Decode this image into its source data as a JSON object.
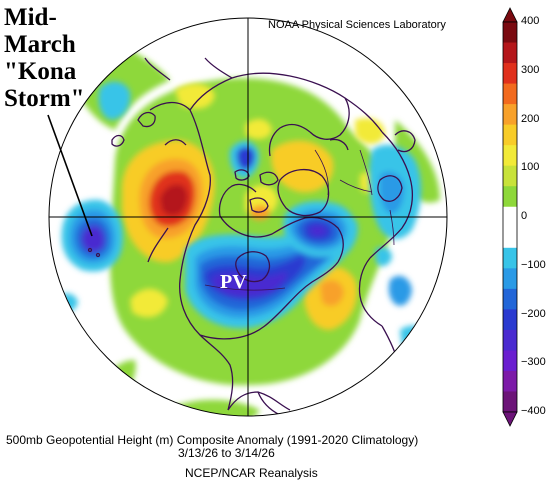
{
  "credit": "NOAA Physical Sciences Laboratory",
  "annotation": {
    "lines": [
      "Mid-",
      "March",
      "\"Kona",
      "Storm\""
    ]
  },
  "feature_label": "PV",
  "caption": {
    "line1": "500mb Geopotential Height (m) Composite Anomaly (1991-2020 Climatology)",
    "line2": "3/13/26  to 3/14/26",
    "line3": "NCEP/NCAR Reanalysis"
  },
  "colorbar": {
    "ticks": [
      "400",
      "300",
      "200",
      "100",
      "0",
      "−100",
      "−200",
      "−300",
      "−400"
    ],
    "colors": [
      "#7a0a10",
      "#b4161a",
      "#e0301c",
      "#f26a1e",
      "#f8a12a",
      "#f8cc28",
      "#f2ea38",
      "#c8e23a",
      "#8ed83a",
      "#ffffff",
      "#ffffff",
      "#38c4e8",
      "#2a9ae6",
      "#2266d8",
      "#2a3ad0",
      "#4a2ad0",
      "#6a1ed0",
      "#7c1aa8",
      "#6c1478"
    ]
  },
  "colors": {
    "ocean_bg": "#ffffff",
    "coast": "#3a1050"
  }
}
